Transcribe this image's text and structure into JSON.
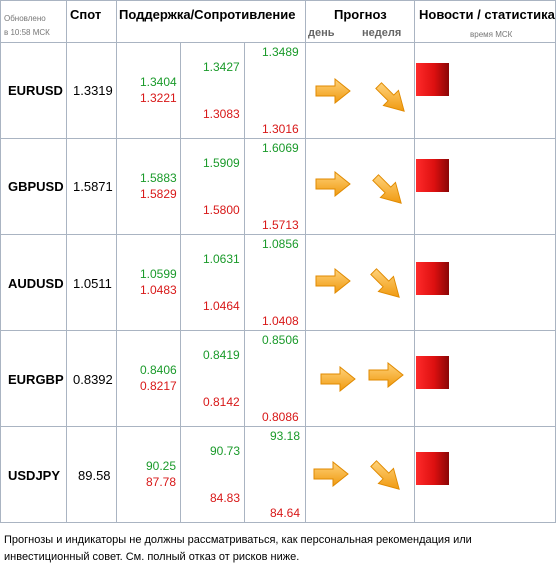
{
  "header": {
    "updated_line1": "Обновлено",
    "updated_line2": "в 10:58 МСК",
    "spot": "Спот",
    "support_resistance": "Поддержка/Сопротивление",
    "forecast": "Прогноз",
    "forecast_day": "день",
    "forecast_week": "неделя",
    "news": "Новости / статистика",
    "news_sub": "время МСК"
  },
  "rows": [
    {
      "pair": "EURUSD",
      "spot": "1.3319",
      "c1_g": "1.3404",
      "c1_r": "1.3221",
      "c2_g": "1.3427",
      "c2_r": "1.3083",
      "c3_g": "1.3489",
      "c3_r": "1.3016",
      "day": "right",
      "week": "down-right"
    },
    {
      "pair": "GBPUSD",
      "spot": "1.5871",
      "c1_g": "1.5883",
      "c1_r": "1.5829",
      "c2_g": "1.5909",
      "c2_r": "1.5800",
      "c3_g": "1.6069",
      "c3_r": "1.5713",
      "day": "right",
      "week": "down-right"
    },
    {
      "pair": "AUDUSD",
      "spot": "1.0511",
      "c1_g": "1.0599",
      "c1_r": "1.0483",
      "c2_g": "1.0631",
      "c2_r": "1.0464",
      "c3_g": "1.0856",
      "c3_r": "1.0408",
      "day": "right",
      "week": "down-right"
    },
    {
      "pair": "EURGBP",
      "spot": "0.8392",
      "c1_g": "0.8406",
      "c1_r": "0.8217",
      "c2_g": "0.8419",
      "c2_r": "0.8142",
      "c3_g": "0.8506",
      "c3_r": "0.8086",
      "day": "right",
      "week": "right"
    },
    {
      "pair": "USDJPY",
      "spot": "89.58",
      "c1_g": "90.25",
      "c1_r": "87.78",
      "c2_g": "90.73",
      "c2_r": "84.83",
      "c3_g": "93.18",
      "c3_r": "84.64",
      "day": "right",
      "week": "down-right"
    }
  ],
  "disclaimer": "Прогнозы и индикаторы не должны рассматриваться, как персональная рекомендация или инвестиционный совет. См. полный отказ от рисков ниже.",
  "colors": {
    "support": "#1a9a2a",
    "resistance": "#d81818",
    "arrow": "#f5a623",
    "news_square": "#e01010"
  }
}
